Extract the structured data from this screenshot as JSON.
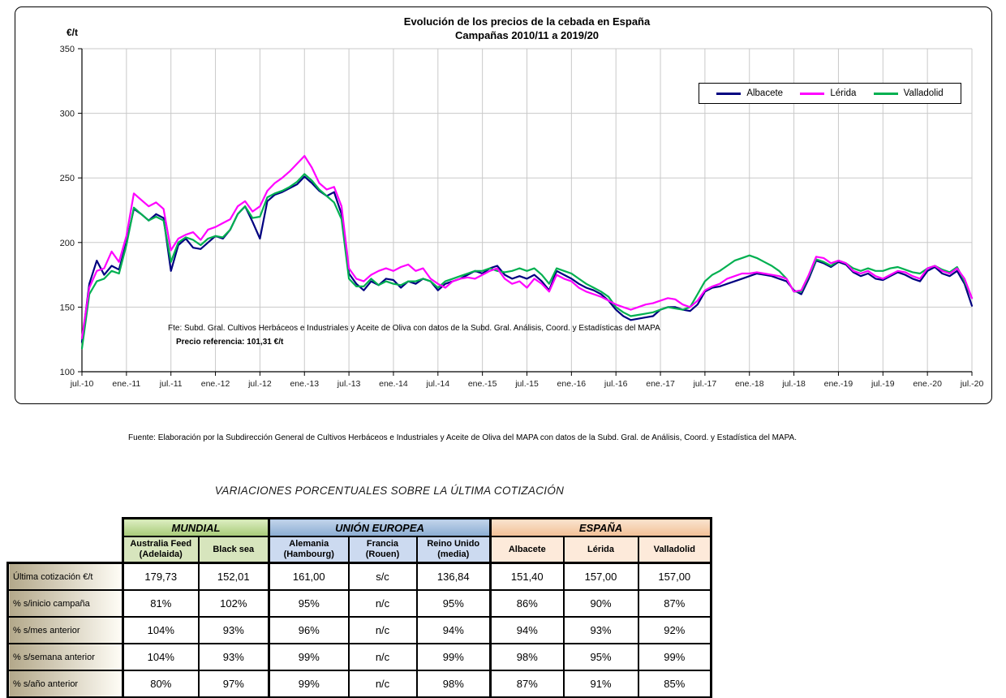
{
  "chart_data": {
    "type": "line",
    "title": "Evolución de los precios de la cebada en España",
    "subtitle": "Campañas 2010/11 a 2019/20",
    "ylabel": "€/t",
    "ylim": [
      100,
      350
    ],
    "y_ticks": [
      100,
      150,
      200,
      250,
      300,
      350
    ],
    "x_tick_labels": [
      "jul.-10",
      "ene.-11",
      "jul.-11",
      "ene.-12",
      "jul.-12",
      "ene.-13",
      "jul.-13",
      "ene.-14",
      "jul.-14",
      "ene.-15",
      "jul.-15",
      "ene.-16",
      "jul.-16",
      "ene.-17",
      "jul.-17",
      "ene.-18",
      "jul.-18",
      "ene.-19",
      "jul.-19",
      "ene.-20",
      "jul.-20"
    ],
    "x_resolution": "monthly (jul-2010 to jul-2020, values estimated from plot)",
    "grid": true,
    "legend_position": "top-right",
    "annotations": [
      "Fte: Subd. Gral. Cultivos Herbáceos e Industriales y Aceite de Oliva con datos de la Subd. Gral. Análisis, Coord. y Estadísticas del MAPA",
      "Precio referencia: 101,31 €/t"
    ],
    "series": [
      {
        "name": "Albacete",
        "color": "#000080",
        "values": [
          123,
          168,
          186,
          175,
          182,
          179,
          200,
          226,
          222,
          217,
          222,
          219,
          178,
          198,
          203,
          196,
          195,
          200,
          205,
          203,
          210,
          222,
          228,
          216,
          203,
          232,
          237,
          239,
          242,
          245,
          251,
          246,
          240,
          236,
          239,
          222,
          176,
          168,
          163,
          170,
          167,
          172,
          171,
          165,
          170,
          168,
          172,
          170,
          163,
          168,
          170,
          172,
          175,
          178,
          176,
          180,
          182,
          175,
          172,
          174,
          172,
          175,
          170,
          163,
          178,
          175,
          172,
          168,
          165,
          163,
          160,
          155,
          148,
          143,
          140,
          141,
          142,
          143,
          148,
          150,
          150,
          148,
          147,
          152,
          162,
          165,
          166,
          168,
          170,
          172,
          174,
          176,
          175,
          174,
          172,
          170,
          163,
          160,
          172,
          186,
          184,
          181,
          185,
          183,
          177,
          174,
          176,
          172,
          171,
          174,
          177,
          175,
          172,
          170,
          178,
          181,
          176,
          174,
          178,
          168,
          151
        ]
      },
      {
        "name": "Lérida",
        "color": "#FF00FF",
        "values": [
          126,
          165,
          178,
          180,
          193,
          185,
          205,
          238,
          233,
          228,
          231,
          226,
          194,
          203,
          206,
          208,
          202,
          210,
          212,
          215,
          218,
          228,
          232,
          224,
          228,
          240,
          246,
          250,
          255,
          261,
          267,
          258,
          246,
          241,
          243,
          228,
          180,
          172,
          170,
          175,
          178,
          180,
          178,
          181,
          183,
          178,
          180,
          172,
          168,
          165,
          170,
          172,
          173,
          172,
          175,
          178,
          180,
          172,
          168,
          170,
          165,
          172,
          168,
          162,
          175,
          172,
          170,
          165,
          162,
          160,
          158,
          155,
          152,
          150,
          148,
          150,
          152,
          153,
          155,
          157,
          156,
          152,
          150,
          155,
          163,
          166,
          168,
          172,
          174,
          176,
          176,
          177,
          176,
          175,
          174,
          172,
          162,
          163,
          175,
          189,
          188,
          184,
          186,
          184,
          178,
          176,
          178,
          174,
          172,
          175,
          178,
          177,
          174,
          172,
          180,
          182,
          178,
          176,
          180,
          172,
          157
        ]
      },
      {
        "name": "Valladolid",
        "color": "#00B050",
        "values": [
          118,
          160,
          170,
          172,
          178,
          176,
          198,
          227,
          222,
          217,
          220,
          217,
          185,
          200,
          204,
          202,
          198,
          203,
          205,
          204,
          210,
          222,
          228,
          219,
          220,
          235,
          238,
          240,
          243,
          247,
          253,
          248,
          241,
          236,
          231,
          218,
          172,
          166,
          166,
          172,
          167,
          170,
          168,
          167,
          170,
          170,
          172,
          170,
          165,
          170,
          172,
          174,
          176,
          178,
          178,
          180,
          178,
          177,
          178,
          180,
          178,
          180,
          175,
          168,
          180,
          178,
          176,
          172,
          168,
          165,
          162,
          158,
          150,
          146,
          143,
          144,
          145,
          146,
          148,
          150,
          149,
          148,
          150,
          160,
          170,
          175,
          178,
          182,
          186,
          188,
          190,
          188,
          185,
          182,
          178,
          172,
          162,
          162,
          174,
          187,
          185,
          182,
          186,
          184,
          180,
          178,
          180,
          178,
          178,
          180,
          181,
          179,
          177,
          176,
          180,
          182,
          179,
          177,
          181,
          170,
          157
        ]
      }
    ]
  },
  "source_note": "Fuente: Elaboración por la Subdirección General de Cultivos Herbáceos e Industriales y Aceite de Oliva del MAPA con datos de la Subd. Gral. de Análisis, Coord. y Estadística del MAPA.",
  "table": {
    "title": "VARIACIONES PORCENTUALES SOBRE LA ÚLTIMA COTIZACIÓN",
    "groups": [
      {
        "label": "MUNDIAL"
      },
      {
        "label": "UNIÓN EUROPEA"
      },
      {
        "label": "ESPAÑA"
      }
    ],
    "columns": [
      "Australia Feed\n(Adelaida)",
      "Black sea",
      "Alemania\n(Hambourg)",
      "Francia\n(Rouen)",
      "Reino Unido\n(media)",
      "Albacete",
      "Lérida",
      "Valladolid"
    ],
    "rows": [
      {
        "label": "Última cotización €/t",
        "values": [
          "179,73",
          "152,01",
          "161,00",
          "s/c",
          "136,84",
          "151,40",
          "157,00",
          "157,00"
        ]
      },
      {
        "label": "% s/inicio campaña",
        "values": [
          "81%",
          "102%",
          "95%",
          "n/c",
          "95%",
          "86%",
          "90%",
          "87%"
        ]
      },
      {
        "label": "% s/mes anterior",
        "values": [
          "104%",
          "93%",
          "96%",
          "n/c",
          "94%",
          "94%",
          "93%",
          "92%"
        ]
      },
      {
        "label": "% s/semana anterior",
        "values": [
          "104%",
          "93%",
          "99%",
          "n/c",
          "99%",
          "98%",
          "95%",
          "99%"
        ]
      },
      {
        "label": "% s/año anterior",
        "values": [
          "80%",
          "97%",
          "99%",
          "n/c",
          "98%",
          "87%",
          "91%",
          "85%"
        ]
      }
    ]
  },
  "colors": {
    "albacete_line": "#000080",
    "lerida_line": "#FF00FF",
    "valladolid_line": "#00B050",
    "gridline": "#c9c9c9",
    "mundial_header": "#a8cb78",
    "ue_header": "#8badd3",
    "espana_header": "#f2c096",
    "row_label_gradient_start": "#b3a88a"
  }
}
